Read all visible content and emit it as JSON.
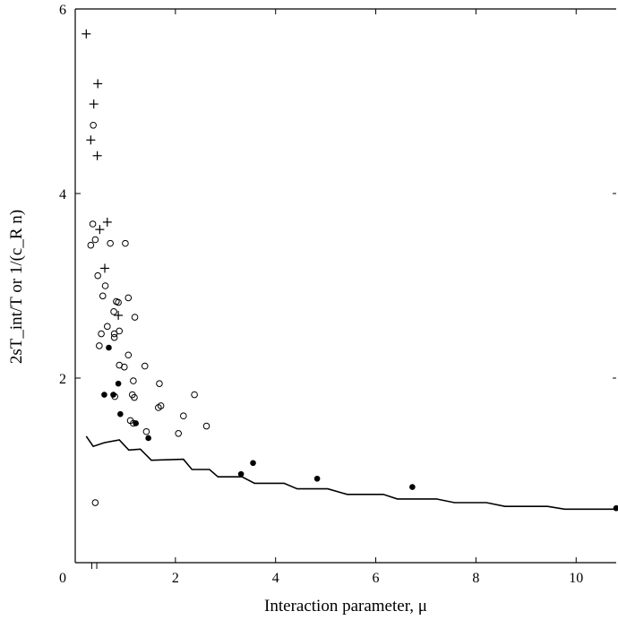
{
  "chart_data": {
    "type": "scatter",
    "title": "",
    "xlabel": "Interaction parameter, μ",
    "ylabel": "2sT_int/T or 1/(c_R n)",
    "xlim": [
      0,
      10.8
    ],
    "ylim": [
      0,
      6
    ],
    "x_ticks": [
      0,
      2,
      4,
      6,
      8,
      10
    ],
    "y_ticks": [
      2,
      4,
      6
    ],
    "x_extra_ticks": [
      0.33,
      0.43
    ],
    "grid": false,
    "legend": "none",
    "series": [
      {
        "marker": "plus",
        "points": [
          [
            0.22,
            5.73
          ],
          [
            0.45,
            5.19
          ],
          [
            0.37,
            4.97
          ],
          [
            0.31,
            4.58
          ],
          [
            0.44,
            4.41
          ],
          [
            0.64,
            3.69
          ],
          [
            0.49,
            3.61
          ],
          [
            0.59,
            3.19
          ],
          [
            0.86,
            2.68
          ]
        ]
      },
      {
        "marker": "circle-open",
        "points": [
          [
            0.36,
            4.74
          ],
          [
            0.35,
            3.67
          ],
          [
            0.4,
            3.5
          ],
          [
            0.31,
            3.44
          ],
          [
            0.7,
            3.46
          ],
          [
            1.0,
            3.46
          ],
          [
            0.45,
            3.11
          ],
          [
            0.6,
            3.0
          ],
          [
            0.55,
            2.89
          ],
          [
            1.06,
            2.87
          ],
          [
            0.82,
            2.83
          ],
          [
            0.86,
            2.82
          ],
          [
            0.77,
            2.72
          ],
          [
            1.19,
            2.66
          ],
          [
            0.64,
            2.56
          ],
          [
            0.88,
            2.51
          ],
          [
            0.52,
            2.48
          ],
          [
            0.78,
            2.48
          ],
          [
            0.78,
            2.44
          ],
          [
            0.48,
            2.35
          ],
          [
            1.06,
            2.25
          ],
          [
            0.88,
            2.14
          ],
          [
            0.98,
            2.12
          ],
          [
            1.39,
            2.13
          ],
          [
            1.16,
            1.97
          ],
          [
            1.68,
            1.94
          ],
          [
            1.14,
            1.82
          ],
          [
            1.18,
            1.79
          ],
          [
            0.79,
            1.8
          ],
          [
            2.38,
            1.82
          ],
          [
            2.16,
            1.59
          ],
          [
            1.71,
            1.7
          ],
          [
            1.66,
            1.68
          ],
          [
            2.62,
            1.48
          ],
          [
            1.1,
            1.54
          ],
          [
            1.16,
            1.51
          ],
          [
            1.42,
            1.42
          ],
          [
            2.06,
            1.4
          ],
          [
            0.4,
            0.65
          ]
        ]
      },
      {
        "marker": "circle-filled",
        "points": [
          [
            0.67,
            2.33
          ],
          [
            0.86,
            1.94
          ],
          [
            0.58,
            1.82
          ],
          [
            0.76,
            1.82
          ],
          [
            0.9,
            1.61
          ],
          [
            1.21,
            1.51
          ],
          [
            1.46,
            1.35
          ],
          [
            3.31,
            0.96
          ],
          [
            3.55,
            1.08
          ],
          [
            4.83,
            0.91
          ],
          [
            6.73,
            0.82
          ],
          [
            10.8,
            0.59
          ]
        ]
      },
      {
        "marker": "line",
        "points": [
          [
            0.22,
            1.37
          ],
          [
            0.36,
            1.26
          ],
          [
            0.58,
            1.3
          ],
          [
            0.88,
            1.33
          ],
          [
            1.07,
            1.22
          ],
          [
            1.3,
            1.23
          ],
          [
            1.52,
            1.11
          ],
          [
            2.16,
            1.12
          ],
          [
            2.33,
            1.01
          ],
          [
            2.68,
            1.01
          ],
          [
            2.85,
            0.93
          ],
          [
            3.33,
            0.93
          ],
          [
            3.58,
            0.86
          ],
          [
            4.17,
            0.86
          ],
          [
            4.43,
            0.8
          ],
          [
            5.04,
            0.8
          ],
          [
            5.43,
            0.74
          ],
          [
            6.15,
            0.74
          ],
          [
            6.43,
            0.69
          ],
          [
            7.21,
            0.69
          ],
          [
            7.57,
            0.65
          ],
          [
            8.21,
            0.65
          ],
          [
            8.58,
            0.61
          ],
          [
            9.43,
            0.61
          ],
          [
            9.77,
            0.58
          ],
          [
            10.8,
            0.58
          ]
        ]
      }
    ]
  }
}
